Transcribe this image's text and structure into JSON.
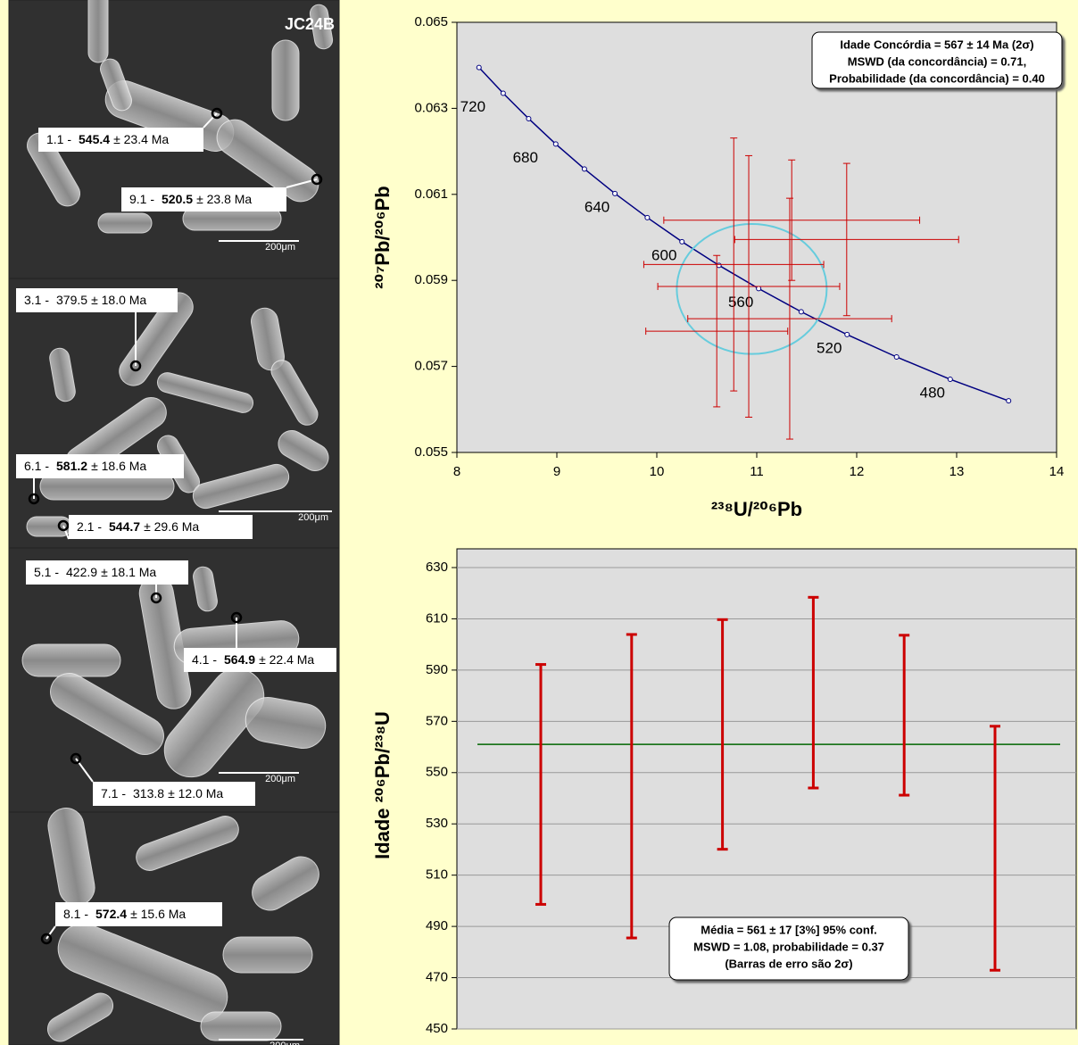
{
  "images": {
    "sample": "JC24B",
    "scale_bar": "200μm",
    "spots": [
      {
        "spot": "1.1 -",
        "age": "545.4",
        "error": "± 23.4 Ma",
        "bold": true
      },
      {
        "spot": "9.1 -",
        "age": "520.5",
        "error": "± 23.8 Ma",
        "bold": true
      },
      {
        "spot": "3.1 -",
        "age": "379.5",
        "error": "± 18.0 Ma",
        "bold": false
      },
      {
        "spot": "6.1 -",
        "age": "581.2",
        "error": "± 18.6 Ma",
        "bold": true
      },
      {
        "spot": "2.1 -",
        "age": "544.7",
        "error": "± 29.6 Ma",
        "bold": true
      },
      {
        "spot": "5.1 -",
        "age": "422.9",
        "error": "± 18.1 Ma",
        "bold": false
      },
      {
        "spot": "4.1 -",
        "age": "564.9",
        "error": "± 22.4 Ma",
        "bold": true
      },
      {
        "spot": "7.1 -",
        "age": "313.8",
        "error": "± 12.0 Ma",
        "bold": false
      },
      {
        "spot": "8.1 -",
        "age": "572.4",
        "error": "± 15.6 Ma",
        "bold": true
      }
    ]
  },
  "chart_data": [
    {
      "type": "concordia",
      "x_label": "²³⁸U/²⁰⁶Pb",
      "y_label": "²⁰⁷Pb/²⁰⁶Pb",
      "xlim": [
        8,
        14
      ],
      "ylim": [
        0.055,
        0.065
      ],
      "xticks": [
        8,
        9,
        10,
        11,
        12,
        13,
        14
      ],
      "yticks": [
        0.055,
        0.057,
        0.059,
        0.061,
        0.063,
        0.065
      ],
      "grid": false,
      "curve": {
        "color": "#000080",
        "ages": [
          460,
          480,
          500,
          520,
          540,
          560,
          580,
          600,
          620,
          640,
          660,
          680,
          700,
          720,
          740
        ],
        "x": [
          13.52,
          12.936,
          12.399,
          11.904,
          11.445,
          11.019,
          10.622,
          10.252,
          9.905,
          9.581,
          9.276,
          8.989,
          8.718,
          8.463,
          8.221
        ],
        "y": [
          0.0562,
          0.0567,
          0.05722,
          0.05774,
          0.05827,
          0.05881,
          0.05935,
          0.0599,
          0.06046,
          0.06102,
          0.06159,
          0.06217,
          0.06276,
          0.06335,
          0.06395
        ]
      },
      "age_labels": [
        720,
        680,
        640,
        600,
        560,
        520,
        480
      ],
      "points": {
        "color": "#cc0000",
        "x": [
          11.35,
          11.9,
          10.92,
          11.33,
          10.6,
          10.77
        ],
        "y": [
          0.0604,
          0.05995,
          0.05886,
          0.05811,
          0.05782,
          0.05937
        ],
        "xerr": [
          1.28,
          1.12,
          0.91,
          1.02,
          0.71,
          0.9
        ],
        "yerr": [
          0.0014,
          0.00177,
          0.00304,
          0.0028,
          0.00176,
          0.00294
        ]
      },
      "ellipse": {
        "color": "#66ccdd",
        "x": 10.95,
        "y": 0.0588,
        "xerr": 0.75,
        "yerr": 0.00151
      },
      "annotation": [
        "Idade Concórdia = 567 ± 14 Ma (2σ)",
        "MSWD (da concordância) = 0.71,",
        "Probabilidade (da concordância) = 0.40"
      ]
    },
    {
      "type": "weighted_mean",
      "y_label": "Idade ²⁰⁶Pb/²³⁸U",
      "ylim": [
        450,
        630
      ],
      "yticks": [
        450,
        470,
        490,
        510,
        530,
        550,
        570,
        590,
        610,
        630
      ],
      "grid": true,
      "values": [
        545.4,
        544.7,
        564.9,
        581.2,
        572.4,
        520.5
      ],
      "errors": [
        46.8,
        59.2,
        44.8,
        37.2,
        31.2,
        47.6
      ],
      "color": "#cc0000",
      "mean": 561,
      "mean_color": "#006600",
      "annotation": [
        "Média = 561 ± 17  [3%]  95% conf.",
        "MSWD = 1.08, probabilidade = 0.37",
        "(Barras de erro são 2σ)"
      ]
    }
  ]
}
